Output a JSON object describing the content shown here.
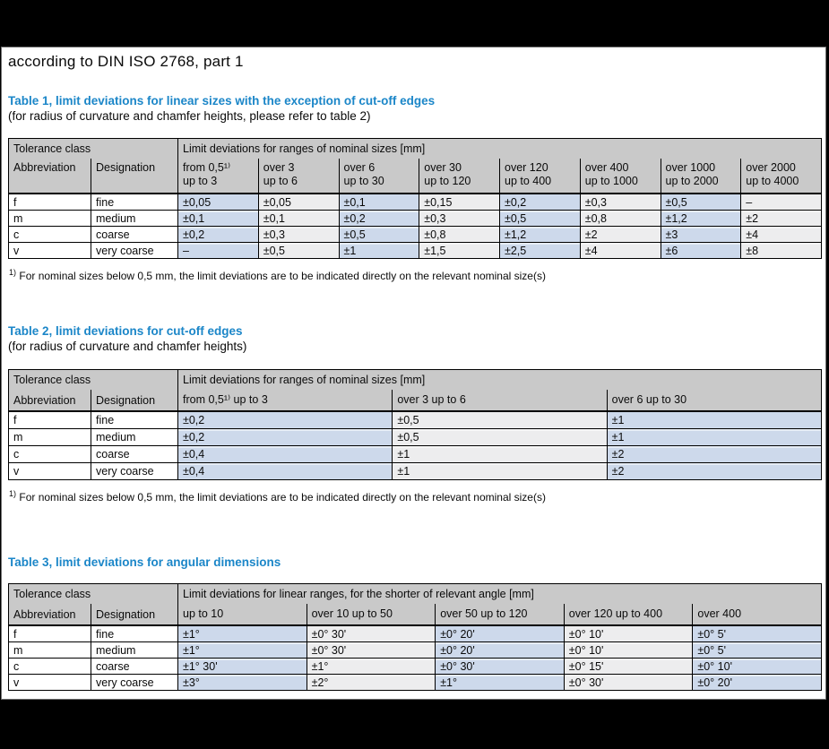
{
  "page": {
    "title": "according to DIN ISO 2768, part 1"
  },
  "colors": {
    "heading_blue": "#1b86c8",
    "table_header_gray": "#c9c9c9",
    "cell_blue": "#cdd9eb",
    "cell_light_gray": "#ededee",
    "surround_black": "#000000"
  },
  "footnote": {
    "marker": "1)",
    "text": "For nominal sizes below 0,5 mm, the limit deviations are to be indicated directly on the relevant nominal size(s)"
  },
  "tables": [
    {
      "heading": "Table 1, limit deviations for linear sizes with the exception of cut-off edges",
      "subheading": "(for radius of curvature and chamfer heights, please refer to table 2)",
      "corner_header": "Tolerance class",
      "span_header": "Limit deviations for ranges of nominal sizes [mm]",
      "abbr_header": "Abbreviation",
      "desig_header": "Designation",
      "range_headers": [
        "from 0,5¹⁾\nup to 3",
        "over 3\nup to 6",
        "over 6\nup to 30",
        "over 30\nup to 120",
        "over 120\nup to 400",
        "over 400\nup to 1000",
        "over 1000\nup to 2000",
        "over 2000\nup to 4000"
      ],
      "rows": [
        {
          "abbr": "f",
          "designation": "fine",
          "values": [
            "±0,05",
            "±0,05",
            "±0,1",
            "±0,15",
            "±0,2",
            "±0,3",
            "±0,5",
            "–"
          ]
        },
        {
          "abbr": "m",
          "designation": "medium",
          "values": [
            "±0,1",
            "±0,1",
            "±0,2",
            "±0,3",
            "±0,5",
            "±0,8",
            "±1,2",
            "±2"
          ]
        },
        {
          "abbr": "c",
          "designation": "coarse",
          "values": [
            "±0,2",
            "±0,3",
            "±0,5",
            "±0,8",
            "±1,2",
            "±2",
            "±3",
            "±4"
          ]
        },
        {
          "abbr": "v",
          "designation": "very coarse",
          "values": [
            "–",
            "±0,5",
            "±1",
            "±1,5",
            "±2,5",
            "±4",
            "±6",
            "±8"
          ]
        }
      ],
      "has_footnote": true
    },
    {
      "heading": "Table 2, limit deviations for cut-off edges",
      "subheading": "(for radius of curvature and chamfer heights)",
      "corner_header": "Tolerance class",
      "span_header": "Limit deviations for ranges of nominal sizes [mm]",
      "abbr_header": "Abbreviation",
      "desig_header": "Designation",
      "range_headers": [
        "from 0,5¹⁾ up to 3",
        "over 3 up to 6",
        "over 6 up to 30"
      ],
      "rows": [
        {
          "abbr": "f",
          "designation": "fine",
          "values": [
            "±0,2",
            "±0,5",
            "±1"
          ]
        },
        {
          "abbr": "m",
          "designation": "medium",
          "values": [
            "±0,2",
            "±0,5",
            "±1"
          ]
        },
        {
          "abbr": "c",
          "designation": "coarse",
          "values": [
            "±0,4",
            "±1",
            "±2"
          ]
        },
        {
          "abbr": "v",
          "designation": "very coarse",
          "values": [
            "±0,4",
            "±1",
            "±2"
          ]
        }
      ],
      "has_footnote": true
    },
    {
      "heading": "Table 3, limit deviations for angular dimensions",
      "subheading": "",
      "corner_header": "Tolerance class",
      "span_header": "Limit deviations for linear ranges, for the shorter of relevant angle [mm]",
      "abbr_header": "Abbreviation",
      "desig_header": "Designation",
      "range_headers": [
        "up to 10",
        "over 10 up to 50",
        "over 50 up to 120",
        "over 120 up to 400",
        "over 400"
      ],
      "rows": [
        {
          "abbr": "f",
          "designation": "fine",
          "values": [
            "±1°",
            "±0° 30'",
            "±0° 20'",
            "±0° 10'",
            "±0° 5'"
          ]
        },
        {
          "abbr": "m",
          "designation": "medium",
          "values": [
            "±1°",
            "±0° 30'",
            "±0° 20'",
            "±0° 10'",
            "±0° 5'"
          ]
        },
        {
          "abbr": "c",
          "designation": "coarse",
          "values": [
            "±1° 30'",
            "±1°",
            "±0° 30'",
            "±0° 15'",
            "±0° 10'"
          ]
        },
        {
          "abbr": "v",
          "designation": "very coarse",
          "values": [
            "±3°",
            "±2°",
            "±1°",
            "±0° 30'",
            "±0° 20'"
          ]
        }
      ],
      "has_footnote": false
    }
  ]
}
